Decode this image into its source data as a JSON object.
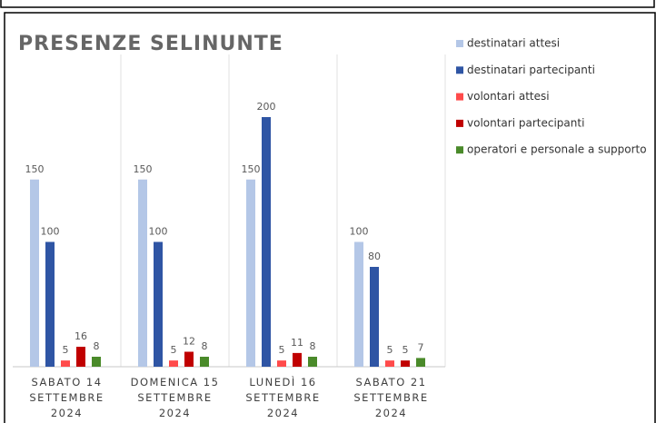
{
  "chart_data": {
    "type": "bar",
    "title": "PRESENZE SELINUNTE",
    "categories": [
      "SABATO 14\nSETTEMBRE\n2024",
      "DOMENICA 15\nSETTEMBRE\n2024",
      "LUNEDÌ 16\nSETTEMBRE\n2024",
      "SABATO 21\nSETTEMBRE\n2024"
    ],
    "series": [
      {
        "name": "destinatari attesi",
        "color": "#b4c7e7",
        "values": [
          150,
          150,
          150,
          100
        ]
      },
      {
        "name": "destinatari partecipanti",
        "color": "#2f55a4",
        "values": [
          100,
          100,
          200,
          80
        ]
      },
      {
        "name": "volontari attesi",
        "color": "#ff4b4b",
        "values": [
          5,
          5,
          5,
          5
        ]
      },
      {
        "name": "volontari partecipanti",
        "color": "#c00000",
        "values": [
          16,
          12,
          11,
          5
        ]
      },
      {
        "name": "operatori e personale a supporto",
        "color": "#4a8a2a",
        "values": [
          8,
          8,
          8,
          7
        ]
      }
    ],
    "ylim": [
      0,
      200
    ],
    "legend": "right"
  }
}
